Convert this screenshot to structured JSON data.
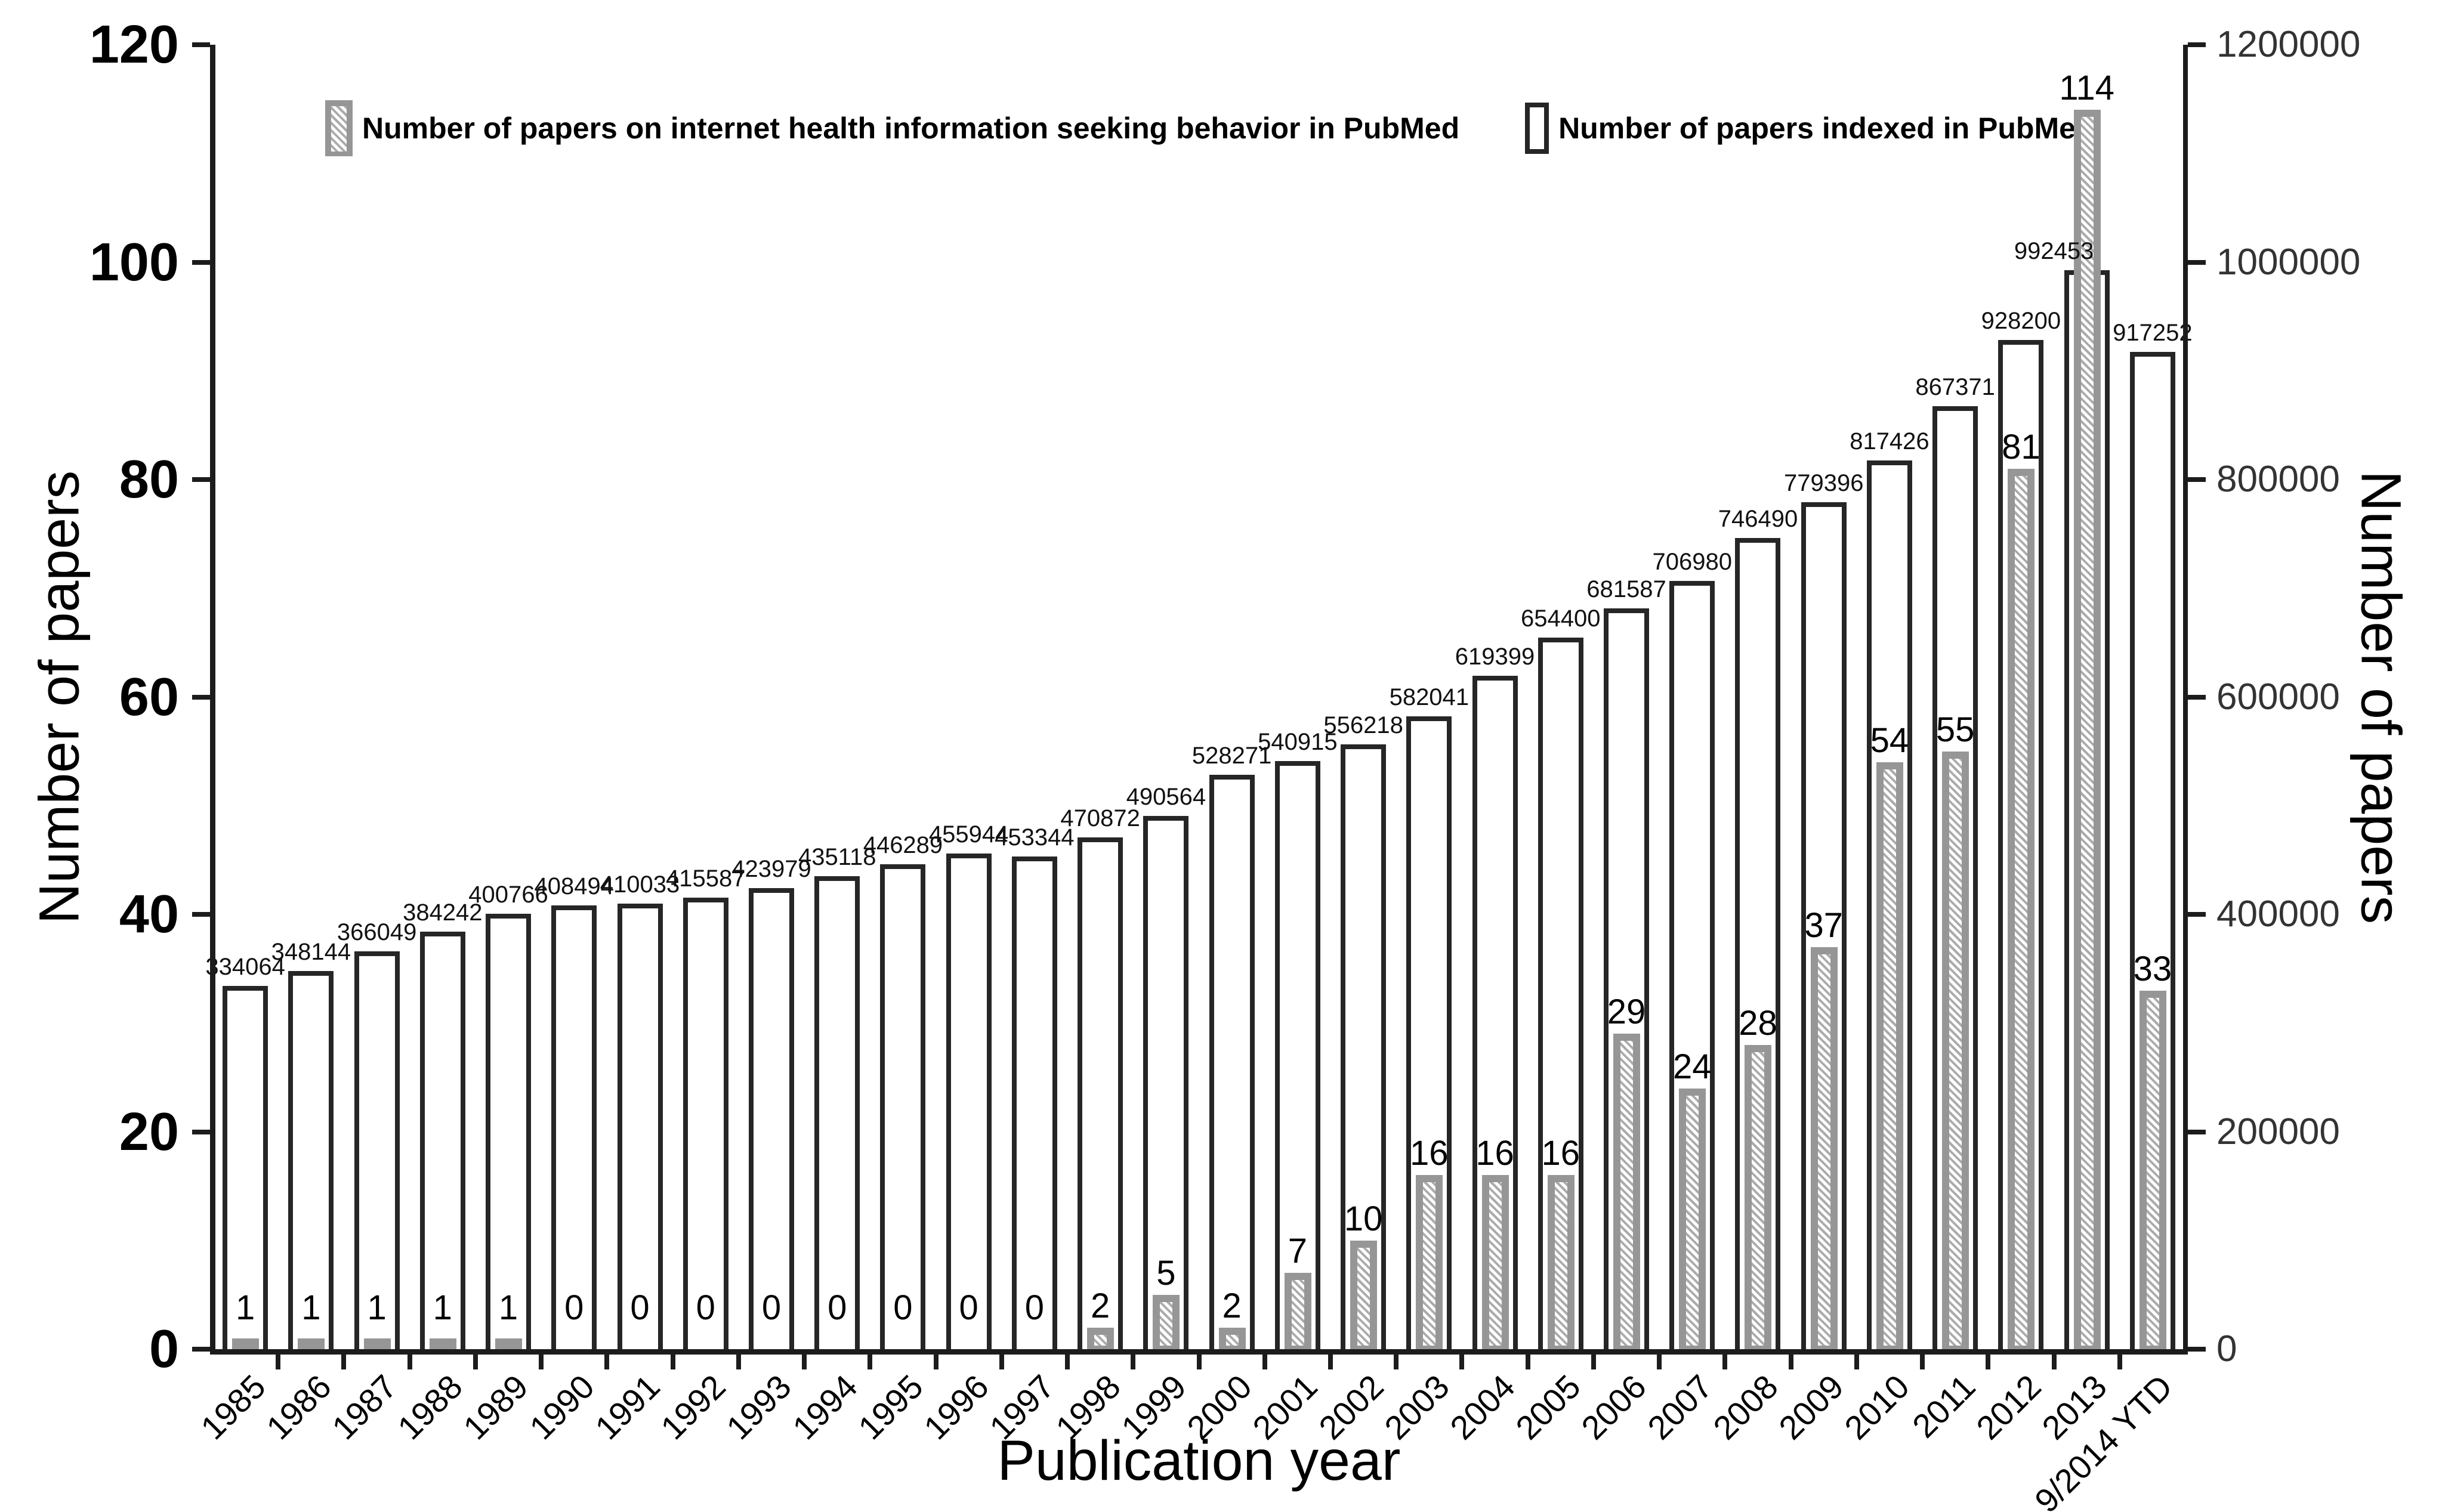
{
  "figure": {
    "x_axis_title": "Publication year",
    "left_axis_title": "Number of papers",
    "right_axis_title": "Number of papers",
    "background": "#ffffff"
  },
  "legend": {
    "items": [
      {
        "label": "Number of papers on internet health information seeking behavior in PubMed",
        "swatch": "gray-hatched-bar"
      },
      {
        "label": "Number of papers indexed in PubMed",
        "swatch": "white-outline-bar"
      }
    ]
  },
  "colors": {
    "bar_outline": "#262626",
    "gray_bar_fill": "#969696",
    "axis_line": "#1c1c1c",
    "right_tick_label": "#333333",
    "background": "#ffffff"
  },
  "chart_data": {
    "type": "bar",
    "title": "",
    "legend_position": "top",
    "grid": false,
    "categories": [
      "1985",
      "1986",
      "1987",
      "1988",
      "1989",
      "1990",
      "1991",
      "1992",
      "1993",
      "1994",
      "1995",
      "1996",
      "1997",
      "1998",
      "1999",
      "2000",
      "2001",
      "2002",
      "2003",
      "2004",
      "2005",
      "2006",
      "2007",
      "2008",
      "2009",
      "2010",
      "2011",
      "2012",
      "2013",
      "9/2014 YTD"
    ],
    "series": [
      {
        "name": "Number of papers on internet health information seeking behavior in PubMed",
        "axis": "left",
        "style": "gray-hatched",
        "values": [
          1,
          1,
          1,
          1,
          1,
          0,
          0,
          0,
          0,
          0,
          0,
          0,
          0,
          2,
          5,
          2,
          7,
          10,
          16,
          16,
          16,
          29,
          24,
          28,
          37,
          54,
          55,
          81,
          114,
          33
        ]
      },
      {
        "name": "Number of papers indexed in PubMed",
        "axis": "right",
        "style": "white-outline",
        "values": [
          334064,
          348144,
          366049,
          384242,
          400766,
          408494,
          410033,
          415587,
          423979,
          435118,
          446289,
          455944,
          453344,
          470872,
          490564,
          528271,
          540915,
          556218,
          582041,
          619399,
          654400,
          681587,
          706980,
          746490,
          779396,
          817426,
          867371,
          928200,
          992453,
          917252
        ]
      }
    ],
    "left_axis": {
      "label": "Number of papers",
      "min": 0,
      "max": 120,
      "tick_step": 20
    },
    "right_axis": {
      "label": "Number of papers",
      "min": 0,
      "max": 1200000,
      "tick_step": 200000
    },
    "x_axis": {
      "label": "Publication year"
    }
  }
}
